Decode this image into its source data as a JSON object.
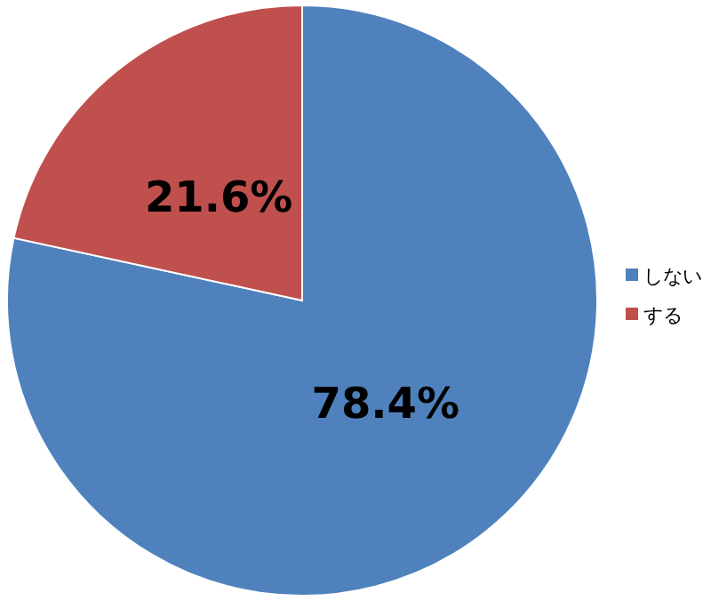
{
  "chart_data": {
    "type": "pie",
    "categories": [
      "しない",
      "する"
    ],
    "values": [
      78.4,
      21.6
    ],
    "colors": [
      "#4f81bd",
      "#c0504d"
    ],
    "value_labels": [
      "78.4%",
      "21.6%"
    ],
    "legend": "right"
  }
}
